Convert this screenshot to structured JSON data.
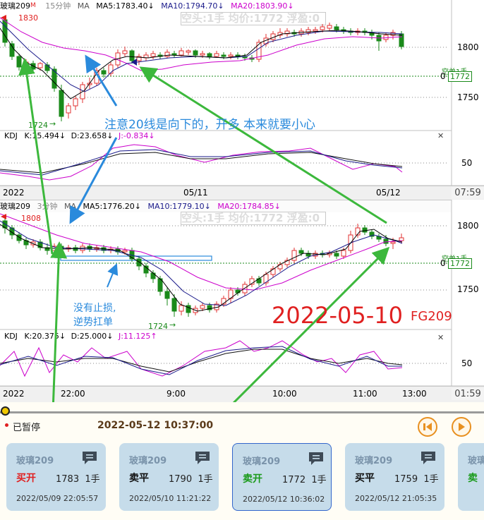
{
  "top_chart": {
    "symbol": "玻璃209",
    "symbol_flag": "M",
    "period": "15分钟",
    "ma_label": "MA",
    "ma5": "MA5:1783.40↓",
    "ma10": "MA10:1794.70↓",
    "ma20": "MA20:1803.90↓",
    "position_text": "空头:1手 均价:1772 浮盈:0",
    "high_label": "1830",
    "low_label": "1724",
    "price_ticks": [
      "1800",
      "1750"
    ],
    "cost_marker": "0",
    "cost_price": "1772",
    "cost_tag": "空单1手",
    "kdj_title": "KDJ",
    "kdj_k": "K:15.494↓",
    "kdj_d": "D:23.658↓",
    "kdj_j": "J:-0.834↓",
    "kdj_tick": "50",
    "time_labels": [
      "2022",
      "05/11",
      "05/12"
    ],
    "corner_time": "07:59"
  },
  "bottom_chart": {
    "symbol": "玻璃209",
    "period": "3分钟",
    "ma_label": "MA",
    "ma5": "MA5:1776.20↓",
    "ma10": "MA10:1779.10↓",
    "ma20": "MA20:1784.85↓",
    "position_text": "空头:1手 均价:1772 浮盈:0",
    "high_label": "1808",
    "low_label": "1724",
    "price_ticks": [
      "1800",
      "1750"
    ],
    "cost_marker": "0",
    "cost_price": "1772",
    "cost_tag": "空单1手",
    "kdj_title": "KDJ",
    "kdj_k": "K:20.375↓",
    "kdj_d": "D:25.000↓",
    "kdj_j": "J:11.125↑",
    "kdj_tick": "50",
    "time_labels": [
      "2022",
      "22:00",
      "9:00",
      "10:00",
      "11:00",
      "13:00"
    ],
    "corner_time": "01:59"
  },
  "annotations": {
    "note_ma20": "注意20线是向下的，开多 本来就要小心",
    "note_stop_line1": "没有止损,",
    "note_stop_line2": "逆势扛单",
    "date_big": "2022-05-10",
    "code_big": "FG209"
  },
  "playback": {
    "status": "已暂停",
    "datetime": "2022-05-12 10:37:00"
  },
  "trades": [
    {
      "name": "玻璃209",
      "action": "买开",
      "price": "1783",
      "qty": "1手",
      "time": "2022/05/09 22:05:57",
      "action_color": "#e02020"
    },
    {
      "name": "玻璃209",
      "action": "卖平",
      "price": "1790",
      "qty": "1手",
      "time": "2022/05/10 11:21:22",
      "action_color": "#111111"
    },
    {
      "name": "玻璃209",
      "action": "卖开",
      "price": "1772",
      "qty": "1手",
      "time": "2022/05/12 10:36:02",
      "action_color": "#1a9a1a"
    },
    {
      "name": "玻璃209",
      "action": "买平",
      "price": "1759",
      "qty": "1手",
      "time": "2022/05/12 21:05:35",
      "action_color": "#111111"
    },
    {
      "name": "玻璃",
      "action": "卖",
      "price": "",
      "qty": "",
      "time": "",
      "action_color": "#1a9a1a"
    }
  ],
  "colors": {
    "up": "#e03030",
    "down": "#1a8a1a",
    "ma5": "#000000",
    "ma10": "#1a1a8a",
    "ma20": "#cc00cc",
    "annotation_blue": "#2a8adc",
    "annotation_green": "#3cb83c",
    "date_red": "#e02020"
  },
  "icons": {
    "play_marker": "play-position-dot-icon",
    "status": "red-dot-icon",
    "prev": "previous-circle-icon",
    "next": "next-circle-icon",
    "card_chat": "chat-bubble-icon"
  }
}
